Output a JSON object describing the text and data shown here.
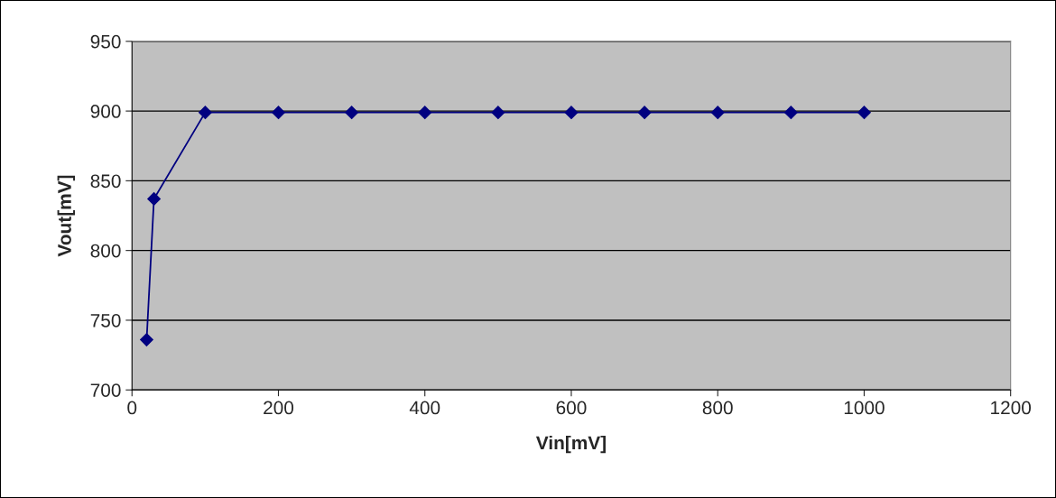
{
  "chart_data": {
    "type": "line",
    "xlabel": "Vin[mV]",
    "ylabel": "Vout[mV]",
    "x": [
      20,
      30,
      100,
      200,
      300,
      400,
      500,
      600,
      700,
      800,
      900,
      1000
    ],
    "series": [
      {
        "color": "#000080",
        "values": [
          736,
          837,
          899,
          899,
          899,
          899,
          899,
          899,
          899,
          899,
          899,
          899
        ]
      }
    ],
    "xlim": [
      0,
      1200
    ],
    "xticks": [
      0,
      200,
      400,
      600,
      800,
      1000,
      1200
    ],
    "ylim": [
      700,
      950
    ],
    "yticks": [
      700,
      750,
      800,
      850,
      900,
      950
    ],
    "grid": "y",
    "marker": "diamond",
    "line_style": "solid",
    "legend": false
  }
}
